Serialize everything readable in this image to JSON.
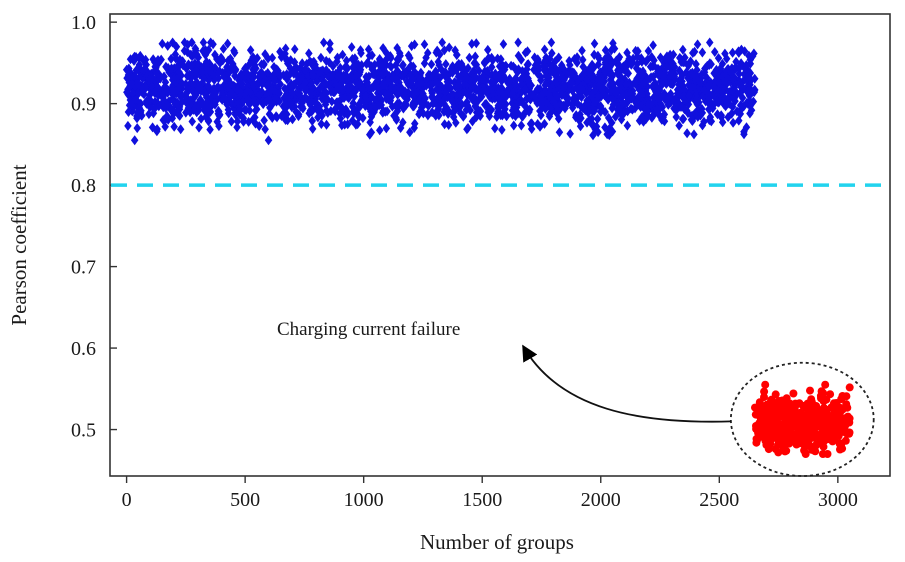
{
  "chart_data": {
    "type": "scatter",
    "xlabel": "Number of groups",
    "ylabel": "Pearson coefficient",
    "xlim": [
      -70,
      3220
    ],
    "ylim": [
      0.443,
      1.01
    ],
    "xticks": [
      0,
      500,
      1000,
      1500,
      2000,
      2500,
      3000
    ],
    "yticks": [
      0.5,
      0.6,
      0.7,
      0.8,
      0.9,
      1.0
    ],
    "grid": false,
    "threshold": {
      "y": 0.8,
      "style": "dashed",
      "color": "#22d3ee"
    },
    "series": [
      {
        "marker": "diamond",
        "color": "#1010dd",
        "count": 2650,
        "x_range": [
          0,
          2650
        ],
        "y_mean": 0.919,
        "y_spread": 0.045,
        "y_min": 0.855,
        "y_max": 0.975
      },
      {
        "marker": "circle",
        "color": "#ff0000",
        "count": 400,
        "x_range": [
          2650,
          3050
        ],
        "y_mean": 0.51,
        "y_spread": 0.035,
        "y_min": 0.47,
        "y_max": 0.555
      }
    ],
    "annotations": [
      {
        "text": "Charging current failure",
        "points_to": {
          "x": 2860,
          "y": 0.51
        }
      }
    ]
  }
}
